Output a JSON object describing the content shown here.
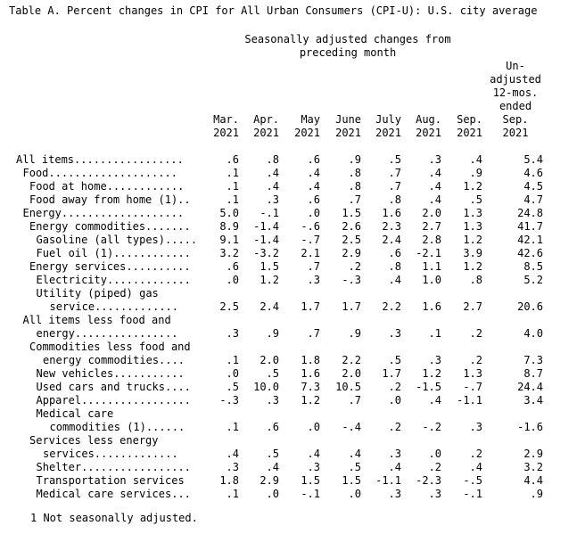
{
  "title": "Table A. Percent changes in CPI for All Urban Consumers (CPI-U): U.S. city average",
  "group_header": [
    "Seasonally adjusted changes from",
    "preceding month"
  ],
  "columns": [
    {
      "lines": [
        "Mar.",
        "2021"
      ]
    },
    {
      "lines": [
        "Apr.",
        "2021"
      ]
    },
    {
      "lines": [
        "May",
        "2021"
      ]
    },
    {
      "lines": [
        "June",
        "2021"
      ]
    },
    {
      "lines": [
        "July",
        "2021"
      ]
    },
    {
      "lines": [
        "Aug.",
        "2021"
      ]
    },
    {
      "lines": [
        "Sep.",
        "2021"
      ]
    },
    {
      "lines": [
        "Un-",
        "adjusted",
        "12-mos.",
        "ended",
        "Sep.",
        "2021"
      ]
    }
  ],
  "rows": [
    {
      "label": "All items.................",
      "indent": 0,
      "values": [
        ".6",
        ".8",
        ".6",
        ".9",
        ".5",
        ".3",
        ".4",
        "5.4"
      ]
    },
    {
      "label": "Food....................",
      "indent": 1,
      "values": [
        ".1",
        ".4",
        ".4",
        ".8",
        ".7",
        ".4",
        ".9",
        "4.6"
      ]
    },
    {
      "label": "Food at home............",
      "indent": 2,
      "values": [
        ".1",
        ".4",
        ".4",
        ".8",
        ".7",
        ".4",
        "1.2",
        "4.5"
      ]
    },
    {
      "label": "Food away from home (1)..",
      "indent": 2,
      "values": [
        ".1",
        ".3",
        ".6",
        ".7",
        ".8",
        ".4",
        ".5",
        "4.7"
      ]
    },
    {
      "label": "Energy...................",
      "indent": 1,
      "values": [
        "5.0",
        "-.1",
        ".0",
        "1.5",
        "1.6",
        "2.0",
        "1.3",
        "24.8"
      ]
    },
    {
      "label": "Energy commodities.......",
      "indent": 2,
      "values": [
        "8.9",
        "-1.4",
        "-.6",
        "2.6",
        "2.3",
        "2.7",
        "1.3",
        "41.7"
      ]
    },
    {
      "label": "Gasoline (all types).....",
      "indent": 3,
      "values": [
        "9.1",
        "-1.4",
        "-.7",
        "2.5",
        "2.4",
        "2.8",
        "1.2",
        "42.1"
      ]
    },
    {
      "label": "Fuel oil (1)............",
      "indent": 3,
      "values": [
        "3.2",
        "-3.2",
        "2.1",
        "2.9",
        ".6",
        "-2.1",
        "3.9",
        "42.6"
      ]
    },
    {
      "label": "Energy services..........",
      "indent": 2,
      "values": [
        ".6",
        "1.5",
        ".7",
        ".2",
        ".8",
        "1.1",
        "1.2",
        "8.5"
      ]
    },
    {
      "label": "Electricity.............",
      "indent": 3,
      "values": [
        ".0",
        "1.2",
        ".3",
        "-.3",
        ".4",
        "1.0",
        ".8",
        "5.2"
      ]
    },
    {
      "label": "Utility (piped) gas",
      "indent": 3,
      "values": []
    },
    {
      "label": "service.............",
      "indent": 5,
      "values": [
        "2.5",
        "2.4",
        "1.7",
        "1.7",
        "2.2",
        "1.6",
        "2.7",
        "20.6"
      ]
    },
    {
      "label": "All items less food and",
      "indent": 1,
      "values": []
    },
    {
      "label": "energy................",
      "indent": 3,
      "values": [
        ".3",
        ".9",
        ".7",
        ".9",
        ".3",
        ".1",
        ".2",
        "4.0"
      ]
    },
    {
      "label": "Commodities less food and",
      "indent": 2,
      "values": []
    },
    {
      "label": "energy commodities....",
      "indent": 4,
      "values": [
        ".1",
        "2.0",
        "1.8",
        "2.2",
        ".5",
        ".3",
        ".2",
        "7.3"
      ]
    },
    {
      "label": "New vehicles...........",
      "indent": 3,
      "values": [
        ".0",
        ".5",
        "1.6",
        "2.0",
        "1.7",
        "1.2",
        "1.3",
        "8.7"
      ]
    },
    {
      "label": "Used cars and trucks....",
      "indent": 3,
      "values": [
        ".5",
        "10.0",
        "7.3",
        "10.5",
        ".2",
        "-1.5",
        "-.7",
        "24.4"
      ]
    },
    {
      "label": "Apparel.................",
      "indent": 3,
      "values": [
        "-.3",
        ".3",
        "1.2",
        ".7",
        ".0",
        ".4",
        "-1.1",
        "3.4"
      ]
    },
    {
      "label": "Medical care",
      "indent": 3,
      "values": []
    },
    {
      "label": "commodities (1)......",
      "indent": 5,
      "values": [
        ".1",
        ".6",
        ".0",
        "-.4",
        ".2",
        "-.2",
        ".3",
        "-1.6"
      ]
    },
    {
      "label": "Services less energy",
      "indent": 2,
      "values": []
    },
    {
      "label": "services.............",
      "indent": 4,
      "values": [
        ".4",
        ".5",
        ".4",
        ".4",
        ".3",
        ".0",
        ".2",
        "2.9"
      ]
    },
    {
      "label": "Shelter.................",
      "indent": 3,
      "values": [
        ".3",
        ".4",
        ".3",
        ".5",
        ".4",
        ".2",
        ".4",
        "3.2"
      ]
    },
    {
      "label": "Transportation services",
      "indent": 3,
      "values": [
        "1.8",
        "2.9",
        "1.5",
        "1.5",
        "-1.1",
        "-2.3",
        "-.5",
        "4.4"
      ]
    },
    {
      "label": "Medical care services...",
      "indent": 3,
      "values": [
        ".1",
        ".0",
        "-.1",
        ".0",
        ".3",
        ".3",
        "-.1",
        ".9"
      ]
    }
  ],
  "footnote": "1 Not seasonally adjusted."
}
